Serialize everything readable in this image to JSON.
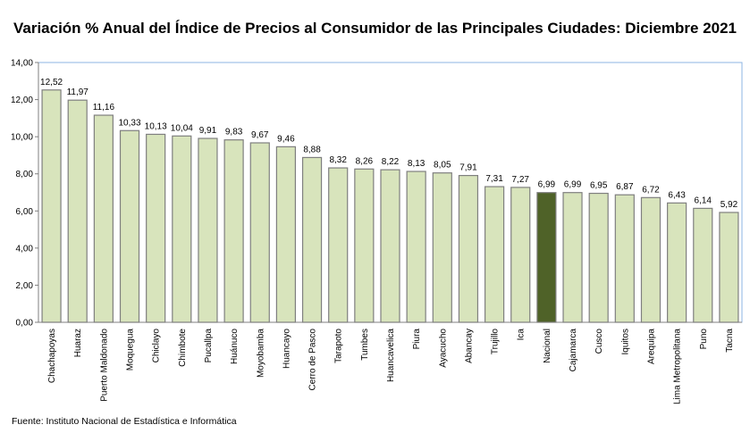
{
  "chart_data": {
    "type": "bar",
    "title": "Variación % Anual del Índice de Precios al Consumidor de las Principales Ciudades: Diciembre 2021",
    "xlabel": "",
    "ylabel": "",
    "ylim": [
      0,
      14
    ],
    "yticks": [
      "0,00",
      "2,00",
      "4,00",
      "6,00",
      "8,00",
      "10,00",
      "12,00",
      "14,00"
    ],
    "grid": false,
    "categories": [
      "Chachapoyas",
      "Huaraz",
      "Puerto Maldonado",
      "Moquegua",
      "Chiclayo",
      "Chimbote",
      "Pucallpa",
      "Huánuco",
      "Moyobamba",
      "Huancayo",
      "Cerro de Pasco",
      "Tarapoto",
      "Tumbes",
      "Huancavelica",
      "Piura",
      "Ayacucho",
      "Abancay",
      "Trujillo",
      "Ica",
      "Nacional",
      "Cajamarca",
      "Cusco",
      "Iquitos",
      "Arequipa",
      "Lima Metropolitana",
      "Puno",
      "Tacna"
    ],
    "values": [
      12.52,
      11.97,
      11.16,
      10.33,
      10.13,
      10.04,
      9.91,
      9.83,
      9.67,
      9.46,
      8.88,
      8.32,
      8.26,
      8.22,
      8.13,
      8.05,
      7.91,
      7.31,
      7.27,
      6.99,
      6.99,
      6.95,
      6.87,
      6.72,
      6.43,
      6.14,
      5.92
    ],
    "value_labels": [
      "12,52",
      "11,97",
      "11,16",
      "10,33",
      "10,13",
      "10,04",
      "9,91",
      "9,83",
      "9,67",
      "9,46",
      "8,88",
      "8,32",
      "8,26",
      "8,22",
      "8,13",
      "8,05",
      "7,91",
      "7,31",
      "7,27",
      "6,99",
      "6,99",
      "6,95",
      "6,87",
      "6,72",
      "6,43",
      "6,14",
      "5,92"
    ],
    "highlight_category": "Nacional",
    "colors": {
      "bar": "#d8e4bc",
      "highlight": "#4f6228",
      "bar_border": "#7f7f7f",
      "plot_border": "#8eb4e3"
    }
  },
  "source": "Fuente: Instituto Nacional de Estadística e Informática"
}
